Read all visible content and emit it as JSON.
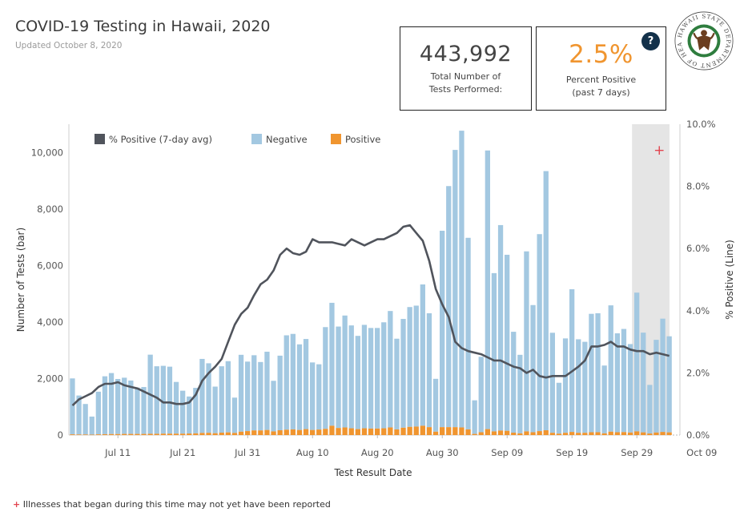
{
  "header": {
    "title": "COVID-19 Testing in Hawaii, 2020",
    "subtitle": "Updated October 8, 2020"
  },
  "kpis": {
    "total_tests_value": "443,992",
    "total_tests_label_line1": "Total Number of",
    "total_tests_label_line2": "Tests Performed:",
    "percent_positive_value": "2.5%",
    "percent_positive_label_line1": "Percent Positive",
    "percent_positive_label_line2": "(past 7 days)",
    "help_glyph": "?"
  },
  "seal": {
    "text": "HAWAII STATE DEPARTMENT OF HEALTH",
    "colors": {
      "ring": "#2e7d3e",
      "figure": "#6b3e1f"
    }
  },
  "footnote": {
    "marker": "+",
    "text": "Illnesses that began during this time may not yet have been reported"
  },
  "colors": {
    "negative": "#a3c8e1",
    "positive": "#f0952f",
    "line": "#50545c",
    "shade": "#e5e5e5",
    "marker": "#e2444f"
  },
  "chart_data": {
    "type": "bar",
    "xlabel": "Test Result Date",
    "ylabel": "Number of Tests (bar)",
    "y2label": "% Positive (Line)",
    "ylim": [
      0,
      11000
    ],
    "y2lim": [
      0,
      10
    ],
    "yticks": [
      "0",
      "2,000",
      "4,000",
      "6,000",
      "8,000",
      "10,000"
    ],
    "yticks_values": [
      0,
      2000,
      4000,
      6000,
      8000,
      10000
    ],
    "y2ticks": [
      "0.0%",
      "2.0%",
      "4.0%",
      "6.0%",
      "8.0%",
      "10.0%"
    ],
    "y2ticks_values": [
      0,
      2,
      4,
      6,
      8,
      10
    ],
    "xticks": [
      {
        "label": "Jul 11",
        "day": 7
      },
      {
        "label": "Jul 21",
        "day": 17
      },
      {
        "label": "Jul 31",
        "day": 27
      },
      {
        "label": "Aug 10",
        "day": 37
      },
      {
        "label": "Aug 20",
        "day": 47
      },
      {
        "label": "Aug 30",
        "day": 57
      },
      {
        "label": "Sep 09",
        "day": 67
      },
      {
        "label": "Sep 19",
        "day": 77
      },
      {
        "label": "Sep 29",
        "day": 87
      },
      {
        "label": "Oct 09",
        "day": 97
      }
    ],
    "first_date": "Jul 04",
    "legend": [
      {
        "name": "% Positive (7-day avg)",
        "kind": "line"
      },
      {
        "name": "Negative",
        "kind": "bar"
      },
      {
        "name": "Positive",
        "kind": "bar"
      }
    ],
    "legend_position": "top",
    "shaded_region": {
      "from_day": 87,
      "to_day": 97.6,
      "marker": "+"
    },
    "negative": [
      1980,
      1380,
      1080,
      640,
      1510,
      2050,
      2160,
      1950,
      1990,
      1890,
      1640,
      1660,
      2800,
      2390,
      2400,
      2370,
      1830,
      1520,
      1310,
      1610,
      2620,
      2460,
      1650,
      2350,
      2520,
      1250,
      2720,
      2460,
      2660,
      2420,
      2770,
      1790,
      2640,
      3340,
      3380,
      3030,
      3190,
      2390,
      2310,
      3600,
      4350,
      3590,
      3960,
      3640,
      3300,
      3660,
      3560,
      3560,
      3750,
      4120,
      3210,
      3850,
      4240,
      4280,
      5000,
      4030,
      1870,
      6950,
      8530,
      9810,
      10500,
      6780,
      1190,
      2670,
      9860,
      5600,
      7270,
      6230,
      3570,
      2780,
      6370,
      4500,
      6970,
      9170,
      3540,
      1800,
      3340,
      5050,
      3310,
      3220,
      4190,
      4210,
      2400,
      4470,
      3500,
      3650,
      3130,
      4910,
      3530,
      1720,
      3280,
      4010,
      3400
    ],
    "positive": [
      25,
      20,
      20,
      15,
      25,
      30,
      35,
      35,
      40,
      40,
      40,
      40,
      45,
      45,
      50,
      50,
      50,
      50,
      55,
      60,
      75,
      80,
      65,
      85,
      95,
      75,
      120,
      140,
      165,
      165,
      180,
      130,
      170,
      190,
      200,
      180,
      210,
      180,
      195,
      220,
      330,
      250,
      270,
      240,
      210,
      240,
      230,
      230,
      240,
      270,
      200,
      260,
      290,
      300,
      330,
      280,
      120,
      280,
      280,
      280,
      270,
      200,
      40,
      100,
      210,
      130,
      160,
      150,
      85,
      60,
      130,
      100,
      140,
      170,
      80,
      50,
      80,
      110,
      80,
      80,
      100,
      100,
      60,
      120,
      100,
      105,
      90,
      130,
      95,
      55,
      90,
      110,
      95
    ],
    "pct_positive_7day": [
      0.95,
      1.15,
      1.25,
      1.35,
      1.55,
      1.65,
      1.65,
      1.7,
      1.6,
      1.55,
      1.5,
      1.4,
      1.3,
      1.2,
      1.05,
      1.05,
      1.0,
      1.0,
      1.05,
      1.3,
      1.75,
      2.0,
      2.2,
      2.45,
      3.0,
      3.55,
      3.9,
      4.1,
      4.5,
      4.85,
      5.0,
      5.3,
      5.8,
      6.0,
      5.85,
      5.8,
      5.9,
      6.3,
      6.2,
      6.2,
      6.2,
      6.15,
      6.1,
      6.3,
      6.2,
      6.1,
      6.2,
      6.3,
      6.3,
      6.4,
      6.5,
      6.7,
      6.75,
      6.5,
      6.25,
      5.6,
      4.7,
      4.2,
      3.8,
      3.0,
      2.8,
      2.7,
      2.65,
      2.6,
      2.5,
      2.4,
      2.4,
      2.3,
      2.2,
      2.15,
      2.0,
      2.1,
      1.9,
      1.85,
      1.9,
      1.9,
      1.9,
      2.05,
      2.2,
      2.4,
      2.85,
      2.85,
      2.9,
      3.0,
      2.85,
      2.85,
      2.75,
      2.7,
      2.7,
      2.6,
      2.65,
      2.6,
      2.55
    ]
  }
}
